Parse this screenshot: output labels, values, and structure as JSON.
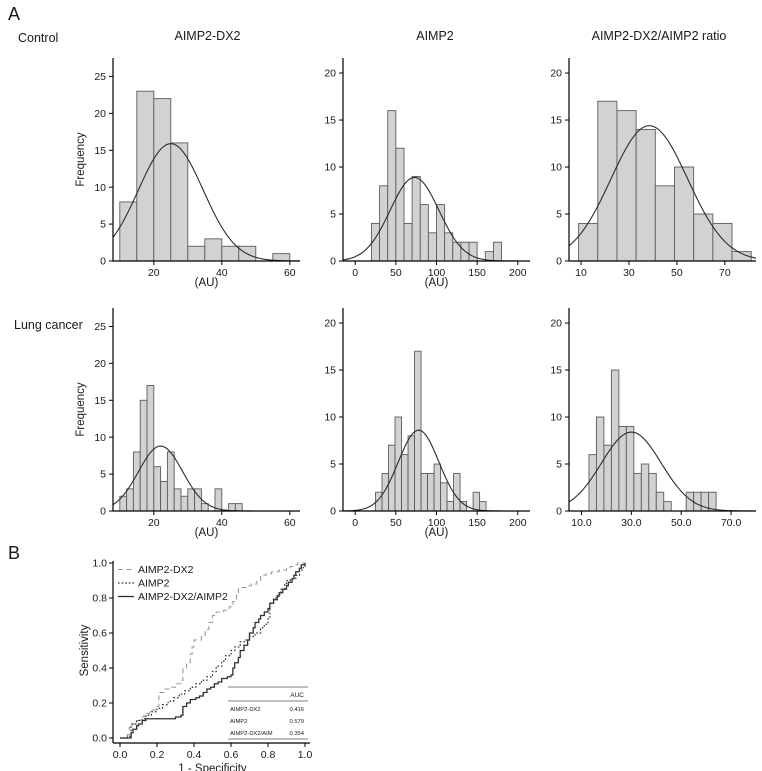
{
  "panelA": {
    "label": "A",
    "row_labels": [
      "Control",
      "Lung cancer"
    ],
    "col_titles": [
      "AIMP2-DX2",
      "AIMP2",
      "AIMP2-DX2/AIMP2 ratio"
    ]
  },
  "panelB": {
    "label": "B"
  },
  "colors": {
    "bar_fill": "#d2d2d2",
    "bar_stroke": "#5c5c5c",
    "curve": "#2b2b2b",
    "axis": "#000000",
    "roc_dashed": "#9a9a9a",
    "roc_dark": "#2f2f2f",
    "table_line": "#555555"
  },
  "chart_data": [
    {
      "type": "histogram",
      "group": "Control",
      "title": "AIMP2-DX2",
      "xlabel": "(AU)",
      "ylabel": "Frequency",
      "bin_start": 10,
      "bin_width": 5,
      "values": [
        8,
        23,
        22,
        16,
        2,
        3,
        2,
        2,
        0,
        1
      ],
      "curve": {
        "peak_x": 25,
        "peak_y": 15.9,
        "sigma": 9.5
      },
      "xlim": [
        8,
        63
      ],
      "ylim": [
        0,
        27.5
      ],
      "xticks": [
        20,
        40,
        60
      ],
      "xtick_labels": [
        "20",
        "40",
        "60"
      ],
      "yticks": [
        0,
        5,
        10,
        15,
        20,
        25
      ]
    },
    {
      "type": "histogram",
      "group": "Control",
      "title": "AIMP2",
      "xlabel": "(AU)",
      "ylabel": "",
      "bin_start": 20,
      "bin_width": 10,
      "values": [
        4,
        8,
        16,
        12,
        4,
        9,
        6,
        3,
        6,
        3,
        2,
        2,
        2,
        0,
        1,
        2
      ],
      "curve": {
        "peak_x": 73,
        "peak_y": 8.9,
        "sigma": 30
      },
      "xlim": [
        -15,
        215
      ],
      "ylim": [
        0,
        21.6
      ],
      "xticks": [
        0,
        50,
        100,
        150,
        200
      ],
      "xtick_labels": [
        "0",
        "50",
        "100",
        "150",
        "200"
      ],
      "yticks": [
        0,
        5,
        10,
        15,
        20
      ]
    },
    {
      "type": "histogram",
      "group": "Control",
      "title": "AIMP2-DX2/AIMP2 ratio",
      "xlabel": "",
      "ylabel": "",
      "bin_start": 9,
      "bin_width": 8,
      "values": [
        4,
        17,
        16,
        14,
        8,
        10,
        5,
        4,
        1
      ],
      "curve": {
        "peak_x": 38.5,
        "peak_y": 14.4,
        "sigma": 16
      },
      "xlim": [
        5,
        83
      ],
      "ylim": [
        0,
        21.6
      ],
      "xticks": [
        10,
        30,
        50,
        70
      ],
      "xtick_labels": [
        "10",
        "30",
        "50",
        "70"
      ],
      "yticks": [
        0,
        5,
        10,
        15,
        20
      ]
    },
    {
      "type": "histogram",
      "group": "Lung cancer",
      "title": "AIMP2-DX2",
      "xlabel": "(AU)",
      "ylabel": "Frequency",
      "bin_start": 10,
      "bin_width": 2,
      "values": [
        2,
        3,
        8,
        15,
        17,
        6,
        4,
        8,
        3,
        2,
        3,
        3,
        1,
        0,
        3,
        0,
        1,
        1
      ],
      "curve": {
        "peak_x": 22,
        "peak_y": 8.8,
        "sigma": 6.5
      },
      "xlim": [
        8,
        63
      ],
      "ylim": [
        0,
        27.5
      ],
      "xticks": [
        20,
        40,
        60
      ],
      "xtick_labels": [
        "20",
        "40",
        "60"
      ],
      "yticks": [
        0,
        5,
        10,
        15,
        20,
        25
      ]
    },
    {
      "type": "histogram",
      "group": "Lung cancer",
      "title": "AIMP2",
      "xlabel": "(AU)",
      "ylabel": "",
      "bin_start": 25,
      "bin_width": 8,
      "values": [
        2,
        4,
        7,
        10,
        6,
        8,
        17,
        4,
        4,
        5,
        3,
        1,
        4,
        1,
        0,
        2,
        1
      ],
      "curve": {
        "peak_x": 78,
        "peak_y": 8.6,
        "sigma": 25
      },
      "xlim": [
        -15,
        215
      ],
      "ylim": [
        0,
        21.6
      ],
      "xticks": [
        0,
        50,
        100,
        150,
        200
      ],
      "xtick_labels": [
        "0",
        "50",
        "100",
        "150",
        "200"
      ],
      "yticks": [
        0,
        5,
        10,
        15,
        20
      ]
    },
    {
      "type": "histogram",
      "group": "Lung cancer",
      "title": "AIMP2-DX2/AIMP2 ratio",
      "xlabel": "",
      "ylabel": "",
      "bin_start": 13,
      "bin_width": 3,
      "values": [
        6,
        10,
        7,
        15,
        9,
        9,
        4,
        5,
        4,
        2,
        1,
        0,
        0,
        2,
        2,
        2,
        2
      ],
      "curve": {
        "peak_x": 30,
        "peak_y": 8.4,
        "sigma": 12
      },
      "xlim": [
        5,
        80
      ],
      "ylim": [
        0,
        21.6
      ],
      "xticks": [
        10,
        30,
        50,
        70
      ],
      "xtick_labels": [
        "10.0",
        "30.0",
        "50.0",
        "70.0"
      ],
      "yticks": [
        0,
        5,
        10,
        15,
        20
      ]
    },
    {
      "type": "roc",
      "xlabel": "1 - Specificity",
      "ylabel": "Sensitivity",
      "xticks": [
        0,
        0.2,
        0.4,
        0.6,
        0.8,
        1.0
      ],
      "tick_labels": [
        "0.0",
        "0.2",
        "0.4",
        "0.6",
        "0.8",
        "1.0"
      ],
      "xlim": [
        0,
        1
      ],
      "ylim": [
        0,
        1
      ],
      "series": [
        {
          "name": "AIMP2-DX2",
          "style": "dashed",
          "auc": "0.416",
          "points": [
            [
              0,
              0
            ],
            [
              0.04,
              0.02
            ],
            [
              0.05,
              0.06
            ],
            [
              0.07,
              0.08
            ],
            [
              0.09,
              0.1
            ],
            [
              0.11,
              0.12
            ],
            [
              0.13,
              0.14
            ],
            [
              0.16,
              0.16
            ],
            [
              0.19,
              0.18
            ],
            [
              0.21,
              0.26
            ],
            [
              0.24,
              0.28
            ],
            [
              0.27,
              0.29
            ],
            [
              0.3,
              0.31
            ],
            [
              0.33,
              0.33
            ],
            [
              0.34,
              0.4
            ],
            [
              0.36,
              0.43
            ],
            [
              0.38,
              0.48
            ],
            [
              0.39,
              0.52
            ],
            [
              0.4,
              0.56
            ],
            [
              0.44,
              0.58
            ],
            [
              0.46,
              0.62
            ],
            [
              0.48,
              0.66
            ],
            [
              0.5,
              0.7
            ],
            [
              0.52,
              0.72
            ],
            [
              0.56,
              0.73
            ],
            [
              0.59,
              0.75
            ],
            [
              0.61,
              0.78
            ],
            [
              0.63,
              0.82
            ],
            [
              0.64,
              0.86
            ],
            [
              0.68,
              0.87
            ],
            [
              0.71,
              0.88
            ],
            [
              0.74,
              0.9
            ],
            [
              0.76,
              0.93
            ],
            [
              0.79,
              0.94
            ],
            [
              0.82,
              0.95
            ],
            [
              0.86,
              0.96
            ],
            [
              0.9,
              0.97
            ],
            [
              0.92,
              0.98
            ],
            [
              0.94,
              0.99
            ],
            [
              0.96,
              1.0
            ],
            [
              1,
              1
            ]
          ]
        },
        {
          "name": "AIMP2",
          "style": "dotted",
          "auc": "0.579",
          "points": [
            [
              0,
              0
            ],
            [
              0.04,
              0.01
            ],
            [
              0.06,
              0.08
            ],
            [
              0.09,
              0.1
            ],
            [
              0.12,
              0.11
            ],
            [
              0.14,
              0.13
            ],
            [
              0.17,
              0.15
            ],
            [
              0.2,
              0.17
            ],
            [
              0.23,
              0.19
            ],
            [
              0.26,
              0.21
            ],
            [
              0.29,
              0.23
            ],
            [
              0.32,
              0.25
            ],
            [
              0.35,
              0.27
            ],
            [
              0.38,
              0.29
            ],
            [
              0.41,
              0.31
            ],
            [
              0.44,
              0.33
            ],
            [
              0.47,
              0.35
            ],
            [
              0.5,
              0.38
            ],
            [
              0.52,
              0.41
            ],
            [
              0.55,
              0.44
            ],
            [
              0.57,
              0.47
            ],
            [
              0.6,
              0.5
            ],
            [
              0.62,
              0.52
            ],
            [
              0.65,
              0.55
            ],
            [
              0.68,
              0.56
            ],
            [
              0.7,
              0.58
            ],
            [
              0.73,
              0.6
            ],
            [
              0.76,
              0.63
            ],
            [
              0.78,
              0.65
            ],
            [
              0.8,
              0.68
            ],
            [
              0.81,
              0.77
            ],
            [
              0.83,
              0.8
            ],
            [
              0.85,
              0.82
            ],
            [
              0.87,
              0.85
            ],
            [
              0.89,
              0.88
            ],
            [
              0.9,
              0.9
            ],
            [
              0.92,
              0.91
            ],
            [
              0.95,
              0.93
            ],
            [
              0.97,
              0.96
            ],
            [
              0.99,
              0.98
            ],
            [
              1,
              1
            ]
          ]
        },
        {
          "name": "AIMP2-DX2/AIMP2",
          "style": "solid",
          "auc": "0.354",
          "points": [
            [
              0,
              0
            ],
            [
              0.05,
              0
            ],
            [
              0.06,
              0.03
            ],
            [
              0.07,
              0.05
            ],
            [
              0.09,
              0.07
            ],
            [
              0.1,
              0.08
            ],
            [
              0.12,
              0.1
            ],
            [
              0.14,
              0.11
            ],
            [
              0.2,
              0.11
            ],
            [
              0.26,
              0.11
            ],
            [
              0.3,
              0.12
            ],
            [
              0.33,
              0.13
            ],
            [
              0.34,
              0.18
            ],
            [
              0.36,
              0.2
            ],
            [
              0.38,
              0.22
            ],
            [
              0.41,
              0.23
            ],
            [
              0.43,
              0.24
            ],
            [
              0.45,
              0.26
            ],
            [
              0.47,
              0.28
            ],
            [
              0.49,
              0.29
            ],
            [
              0.51,
              0.31
            ],
            [
              0.53,
              0.32
            ],
            [
              0.55,
              0.34
            ],
            [
              0.58,
              0.35
            ],
            [
              0.6,
              0.36
            ],
            [
              0.61,
              0.4
            ],
            [
              0.62,
              0.43
            ],
            [
              0.64,
              0.46
            ],
            [
              0.65,
              0.5
            ],
            [
              0.67,
              0.53
            ],
            [
              0.69,
              0.56
            ],
            [
              0.7,
              0.6
            ],
            [
              0.72,
              0.63
            ],
            [
              0.73,
              0.66
            ],
            [
              0.75,
              0.68
            ],
            [
              0.76,
              0.7
            ],
            [
              0.78,
              0.72
            ],
            [
              0.8,
              0.74
            ],
            [
              0.81,
              0.77
            ],
            [
              0.83,
              0.79
            ],
            [
              0.85,
              0.81
            ],
            [
              0.86,
              0.83
            ],
            [
              0.88,
              0.85
            ],
            [
              0.9,
              0.87
            ],
            [
              0.91,
              0.89
            ],
            [
              0.93,
              0.91
            ],
            [
              0.94,
              0.93
            ],
            [
              0.95,
              0.95
            ],
            [
              0.97,
              0.97
            ],
            [
              0.98,
              0.99
            ],
            [
              1,
              1
            ]
          ]
        }
      ],
      "auc_table": {
        "header": "AUC",
        "rows": [
          {
            "label": "AIMP2-DX2",
            "value": "0.416"
          },
          {
            "label": "AIMP2",
            "value": "0.579"
          },
          {
            "label": "AIMP2-DX2/AIM",
            "value": "0.354"
          }
        ]
      }
    }
  ]
}
